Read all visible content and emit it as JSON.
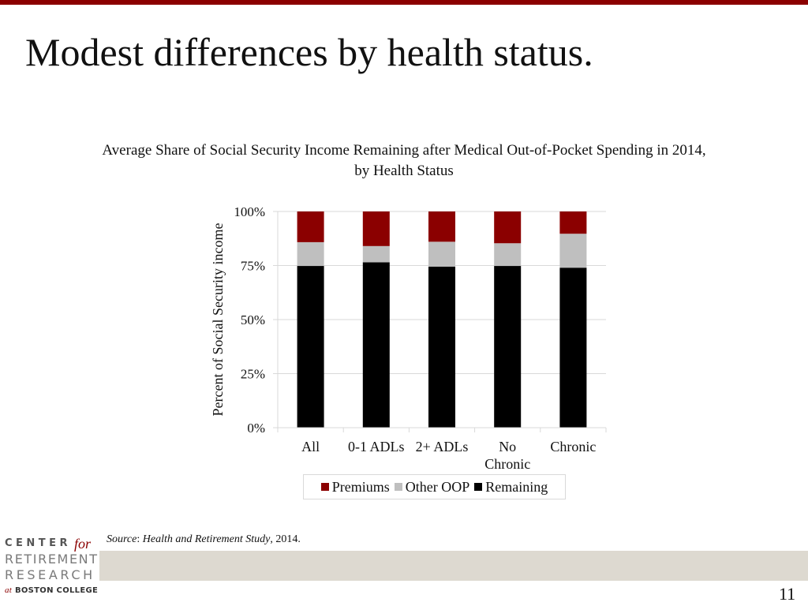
{
  "slide": {
    "title": "Modest differences by health status.",
    "page_number": "11",
    "source_label": "Source",
    "source_separator": ": ",
    "source_study": "Health and Retirement Study",
    "source_rest": ", 2014."
  },
  "logo": {
    "line1": "CENTER",
    "line1_for": "for",
    "line2": "RETIREMENT",
    "line3": "RESEARCH",
    "line4_at": "at",
    "line4": "BOSTON COLLEGE"
  },
  "colors": {
    "accent": "#8b0000",
    "premiums": "#8b0000",
    "other_oop": "#bfbfbf",
    "remaining": "#000000",
    "band": "#ddd9d0"
  },
  "chart_data": {
    "type": "bar",
    "stacked": true,
    "title": "Average Share of Social Security Income Remaining after Medical Out-of-Pocket Spending in 2014,",
    "subtitle": "by Health Status",
    "xlabel": "",
    "ylabel": "Percent of Social Security income",
    "categories": [
      "All",
      "0-1 ADLs",
      "2+ ADLs",
      "No Chronic",
      "Chronic"
    ],
    "category_lines": [
      [
        "All"
      ],
      [
        "0-1 ADLs"
      ],
      [
        "2+ ADLs"
      ],
      [
        "No",
        "Chronic"
      ],
      [
        "Chronic"
      ]
    ],
    "ylim": [
      0,
      100
    ],
    "yticks": [
      0,
      25,
      50,
      75,
      100
    ],
    "ytick_labels": [
      "0%",
      "25%",
      "50%",
      "75%",
      "100%"
    ],
    "grid": true,
    "legend_position": "bottom",
    "series": [
      {
        "name": "Remaining",
        "color": "#000000",
        "values": [
          74.8,
          76.5,
          74.5,
          74.8,
          74.0
        ]
      },
      {
        "name": "Other OOP",
        "color": "#bfbfbf",
        "values": [
          11.0,
          7.5,
          11.5,
          10.5,
          15.7
        ]
      },
      {
        "name": "Premiums",
        "color": "#8b0000",
        "values": [
          14.2,
          16.0,
          14.0,
          14.7,
          10.3
        ]
      }
    ],
    "legend_order": [
      "Premiums",
      "Other OOP",
      "Remaining"
    ]
  }
}
